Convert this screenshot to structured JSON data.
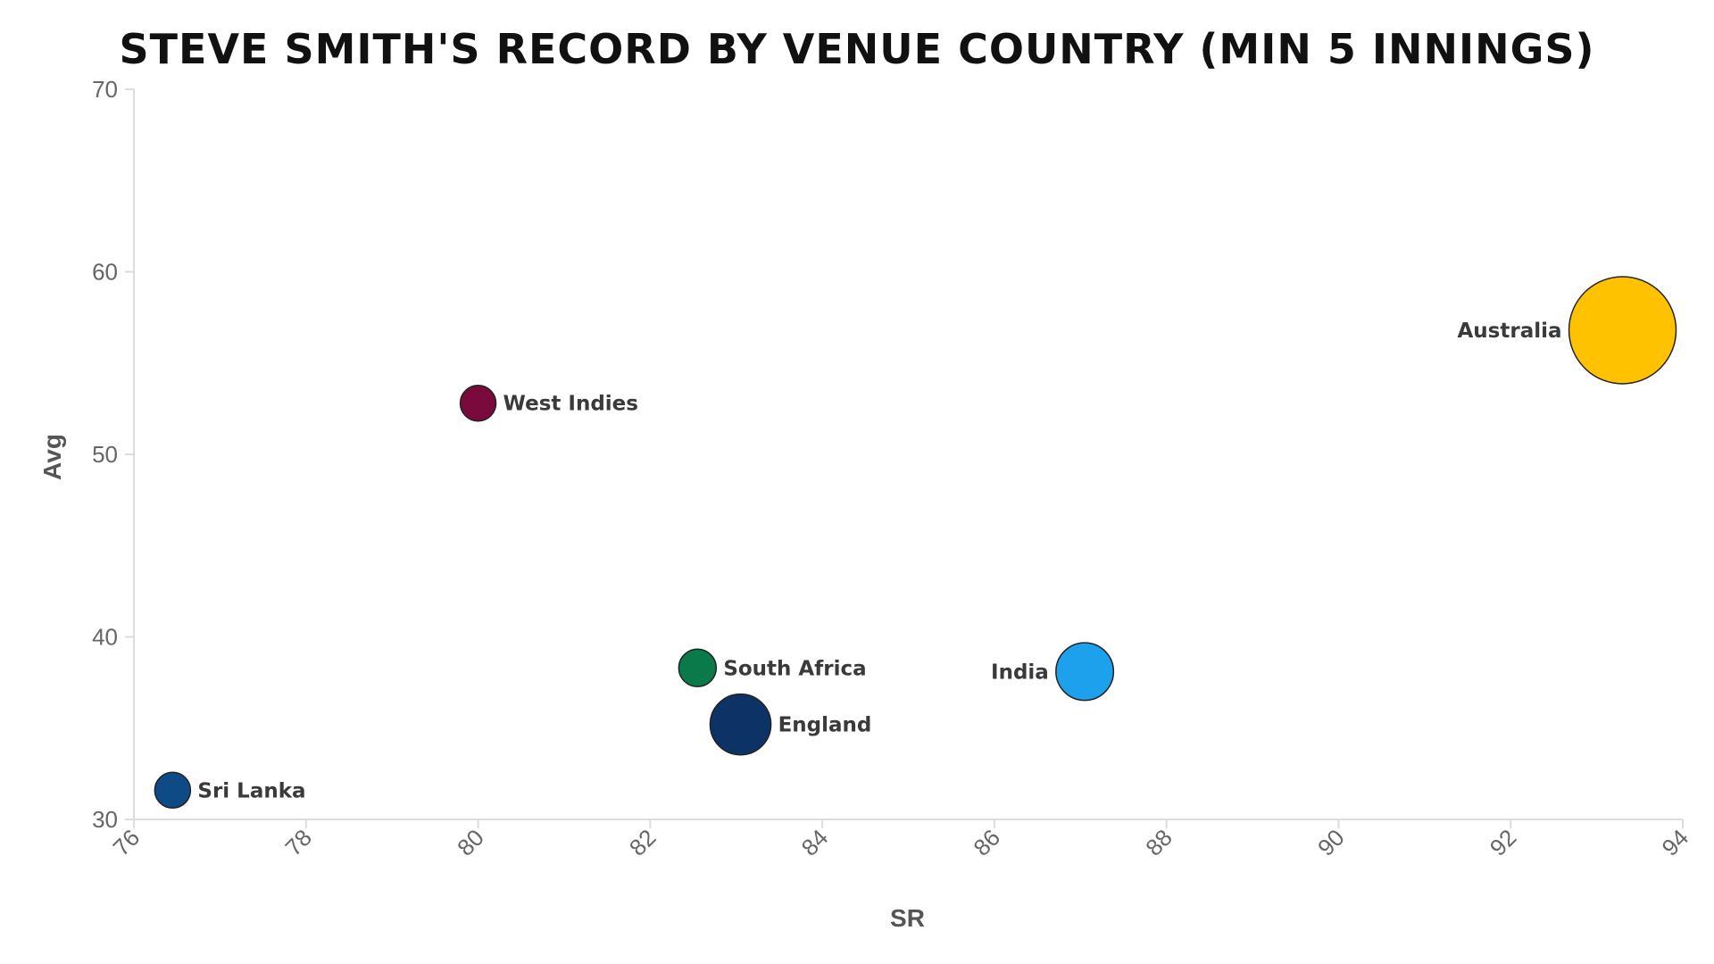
{
  "chart_data": {
    "type": "scatter",
    "title": "STEVE SMITH'S RECORD BY VENUE COUNTRY (MIN 5 INNINGS)",
    "xlabel": "SR",
    "ylabel": "Avg",
    "xlim": [
      76,
      94
    ],
    "ylim": [
      30,
      70
    ],
    "xticks": [
      76,
      78,
      80,
      82,
      84,
      86,
      88,
      90,
      92,
      94
    ],
    "yticks": [
      30,
      40,
      50,
      60,
      70
    ],
    "grid": false,
    "points": [
      {
        "label": "Sri Lanka",
        "x": 76.45,
        "y": 31.6,
        "size": 1,
        "color": "#0d4a86",
        "label_side": "right"
      },
      {
        "label": "West Indies",
        "x": 80.0,
        "y": 52.8,
        "size": 1,
        "color": "#7a0a3c",
        "label_side": "right"
      },
      {
        "label": "South Africa",
        "x": 82.55,
        "y": 38.3,
        "size": 1.1,
        "color": "#0a7a4a",
        "label_side": "right"
      },
      {
        "label": "England",
        "x": 83.05,
        "y": 35.2,
        "size": 2.9,
        "color": "#0d3366",
        "label_side": "right"
      },
      {
        "label": "India",
        "x": 87.05,
        "y": 38.1,
        "size": 2.6,
        "color": "#1da1ec",
        "label_side": "left"
      },
      {
        "label": "Australia",
        "x": 93.3,
        "y": 56.8,
        "size": 9,
        "color": "#ffc200",
        "label_side": "left"
      }
    ]
  }
}
